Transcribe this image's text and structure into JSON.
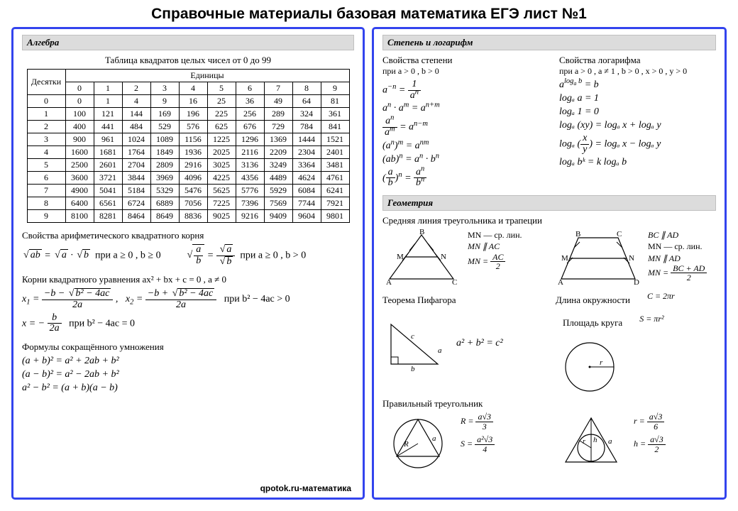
{
  "page": {
    "title": "Справочные материалы базовая математика ЕГЭ лист №1",
    "watermark": "qpotok.ru-математика",
    "background_color": "#ffffff",
    "text_color": "#000000",
    "panel_border_color": "#3344ee",
    "section_header_bg": "#dcdcdc",
    "font_family_body": "Times New Roman",
    "font_family_title": "Arial",
    "title_fontsize_pt": 16
  },
  "left": {
    "header": "Алгебра",
    "squares": {
      "caption": "Таблица квадратов целых чисел от 0 до 99",
      "row_label": "Десятки",
      "col_label": "Единицы",
      "cols": [
        "0",
        "1",
        "2",
        "3",
        "4",
        "5",
        "6",
        "7",
        "8",
        "9"
      ],
      "row_heads": [
        "0",
        "1",
        "2",
        "3",
        "4",
        "5",
        "6",
        "7",
        "8",
        "9"
      ],
      "rows": [
        [
          0,
          1,
          4,
          9,
          16,
          25,
          36,
          49,
          64,
          81
        ],
        [
          100,
          121,
          144,
          169,
          196,
          225,
          256,
          289,
          324,
          361
        ],
        [
          400,
          441,
          484,
          529,
          576,
          625,
          676,
          729,
          784,
          841
        ],
        [
          900,
          961,
          1024,
          1089,
          1156,
          1225,
          1296,
          1369,
          1444,
          1521
        ],
        [
          1600,
          1681,
          1764,
          1849,
          1936,
          2025,
          2116,
          2209,
          2304,
          2401
        ],
        [
          2500,
          2601,
          2704,
          2809,
          2916,
          3025,
          3136,
          3249,
          3364,
          3481
        ],
        [
          3600,
          3721,
          3844,
          3969,
          4096,
          4225,
          4356,
          4489,
          4624,
          4761
        ],
        [
          4900,
          5041,
          5184,
          5329,
          5476,
          5625,
          5776,
          5929,
          6084,
          6241
        ],
        [
          6400,
          6561,
          6724,
          6889,
          7056,
          7225,
          7396,
          7569,
          7744,
          7921
        ],
        [
          8100,
          8281,
          8464,
          8649,
          8836,
          9025,
          9216,
          9409,
          9604,
          9801
        ]
      ]
    },
    "sqrt_title": "Свойства арифметического квадратного корня",
    "sqrt_cond1": "при a ≥ 0 , b ≥ 0",
    "sqrt_cond2": "при a ≥ 0 , b > 0",
    "quad_title": "Корни квадратного уравнения  ax² + bx + c = 0 ,  a ≠ 0",
    "quad_cond1": "при  b² − 4ac > 0",
    "quad_cond2": "при  b² − 4ac = 0",
    "mult_title": "Формулы сокращённого умножения",
    "mult1": "(a + b)² = a² + 2ab + b²",
    "mult2": "(a − b)² = a² − 2ab + b²",
    "mult3": "a² − b² = (a + b)(a − b)"
  },
  "right": {
    "header1": "Степень и логарифм",
    "pow_title": "Свойства степени",
    "pow_cond": "при  a > 0 ,  b > 0",
    "log_title": "Свойства логарифма",
    "log_cond": "при  a > 0 ,  a ≠ 1 ,  b > 0 ,  x > 0 ,  y > 0",
    "log_lines": {
      "l1": "a^(logₐ b) = b",
      "l2": "logₐ a = 1",
      "l3": "logₐ 1 = 0",
      "l4": "logₐ (xy) = logₐ x + logₐ y",
      "l5_lhs": "logₐ",
      "l5_rhs": "= logₐ x − logₐ y",
      "l5_frac_num": "x",
      "l5_frac_den": "y",
      "l6": "logₐ bᵏ = k logₐ b"
    },
    "header2": "Геометрия",
    "midline_title": "Средняя линия треугольника и трапеции",
    "tri_labels": {
      "A": "A",
      "B": "B",
      "C": "C",
      "M": "M",
      "N": "N"
    },
    "trap_labels": {
      "A": "A",
      "B": "B",
      "C": "C",
      "D": "D",
      "M": "M",
      "N": "N"
    },
    "midline_tri_f1": "MN — ср. лин.",
    "midline_tri_f2": "MN ∥ AC",
    "midline_tri_f3_lhs": "MN =",
    "midline_tri_f3_num": "AC",
    "midline_tri_f3_den": "2",
    "midline_trap_f1": "BC ∥ AD",
    "midline_trap_f2": "MN — ср. лин.",
    "midline_trap_f3": "MN ∥ AD",
    "midline_trap_f4_lhs": "MN =",
    "midline_trap_f4_num": "BC + AD",
    "midline_trap_f4_den": "2",
    "pyth_title": "Теорема Пифагора",
    "pyth_labels": {
      "a": "a",
      "b": "b",
      "c": "c"
    },
    "pyth_formula": "a² + b² = c²",
    "circle_title1": "Длина окружности",
    "circle_title2": "Площадь круга",
    "circle_f1": "C = 2πr",
    "circle_f2": "S = πr²",
    "circle_r": "r",
    "reg_tri_title": "Правильный треугольник",
    "reg_labels": {
      "R": "R",
      "a": "a",
      "r": "r",
      "h": "h"
    },
    "reg_R_lhs": "R =",
    "reg_R_num": "a√3",
    "reg_R_den": "3",
    "reg_S_lhs": "S =",
    "reg_S_num": "a²√3",
    "reg_S_den": "4",
    "reg_r_lhs": "r =",
    "reg_r_num": "a√3",
    "reg_r_den": "6",
    "reg_h_lhs": "h =",
    "reg_h_num": "a√3",
    "reg_h_den": "2"
  },
  "diagrams": {
    "stroke": "#000000",
    "stroke_width": 1.2,
    "fill": "none",
    "tick_len": 4
  }
}
